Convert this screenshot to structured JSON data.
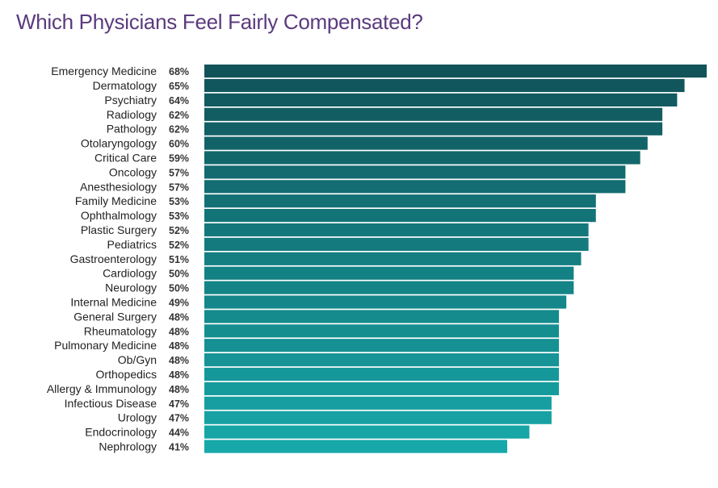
{
  "chart_data": {
    "type": "bar",
    "orientation": "horizontal",
    "title": "Which Physicians Feel Fairly Compensated?",
    "xlabel": "",
    "ylabel": "",
    "value_suffix": "%",
    "xlim": [
      0,
      68
    ],
    "grid": false,
    "legend": "none",
    "colors": {
      "top": "#115359",
      "bottom": "#17a8a9"
    },
    "categories": [
      "Emergency Medicine",
      "Dermatology",
      "Psychiatry",
      "Radiology",
      "Pathology",
      "Otolaryngology",
      "Critical Care",
      "Oncology",
      "Anesthesiology",
      "Family Medicine",
      "Ophthalmology",
      "Plastic Surgery",
      "Pediatrics",
      "Gastroenterology",
      "Cardiology",
      "Neurology",
      "Internal Medicine",
      "General Surgery",
      "Rheumatology",
      "Pulmonary Medicine",
      "Ob/Gyn",
      "Orthopedics",
      "Allergy & Immunology",
      "Infectious Disease",
      "Urology",
      "Endocrinology",
      "Nephrology"
    ],
    "values": [
      68,
      65,
      64,
      62,
      62,
      60,
      59,
      57,
      57,
      53,
      53,
      52,
      52,
      51,
      50,
      50,
      49,
      48,
      48,
      48,
      48,
      48,
      48,
      47,
      47,
      44,
      41
    ]
  }
}
